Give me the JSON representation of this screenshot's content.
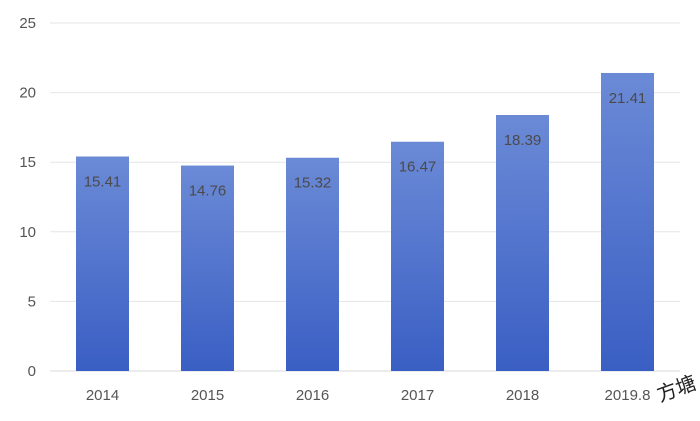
{
  "chart_data": {
    "type": "bar",
    "title": "",
    "xlabel": "",
    "ylabel": "",
    "categories": [
      "2014",
      "2015",
      "2016",
      "2017",
      "2018",
      "2019.8"
    ],
    "values": [
      15.41,
      14.76,
      15.32,
      16.47,
      18.39,
      21.41
    ],
    "value_labels": [
      "15.41",
      "14.76",
      "15.32",
      "16.47",
      "18.39",
      "21.41"
    ],
    "ylim": [
      0,
      25
    ],
    "yticks": [
      0,
      5,
      10,
      15,
      20,
      25
    ],
    "ytick_labels": [
      "0",
      "5",
      "10",
      "15",
      "20",
      "25"
    ],
    "grid": true,
    "legend": "none",
    "bar_color_top": "#6b8ad6",
    "bar_color_bottom": "#3a5fc4"
  },
  "watermark": "方塘"
}
